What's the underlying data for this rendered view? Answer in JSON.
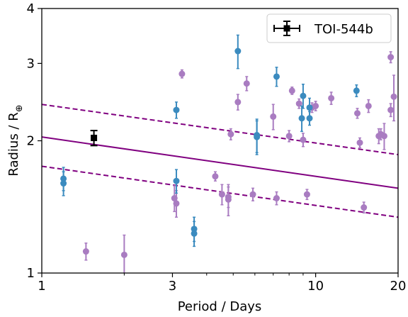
{
  "chart_data": {
    "type": "scatter",
    "xlabel": "Period / Days",
    "ylabel": "Radius / R",
    "ylabel_symbol": "⊕",
    "xscale": "log",
    "yscale": "log",
    "xlim": [
      1,
      20
    ],
    "ylim": [
      1,
      4
    ],
    "xticks": [
      {
        "value": 1,
        "label": "1"
      },
      {
        "value": 3,
        "label": "3"
      },
      {
        "value": 10,
        "label": "10"
      },
      {
        "value": 20,
        "label": "20"
      }
    ],
    "yticks": [
      {
        "value": 1,
        "label": "1"
      },
      {
        "value": 2,
        "label": "2"
      },
      {
        "value": 3,
        "label": "3"
      },
      {
        "value": 4,
        "label": "4"
      }
    ],
    "legend": {
      "position": "top-right",
      "entries": [
        "TOI-544b"
      ]
    },
    "colors": {
      "blue": "#3b8bbf",
      "purple": "#a97cc1",
      "line": "#800080",
      "target": "#000000"
    },
    "lines": [
      {
        "style": "solid",
        "x": [
          1,
          20
        ],
        "y": [
          2.04,
          1.56
        ]
      },
      {
        "style": "dashed",
        "x": [
          1,
          20
        ],
        "y": [
          2.42,
          1.86
        ]
      },
      {
        "style": "dashed",
        "x": [
          1,
          20
        ],
        "y": [
          1.75,
          1.34
        ]
      }
    ],
    "target": {
      "name": "TOI-544b",
      "x": 1.55,
      "y": 2.03,
      "yerr": [
        0.08,
        0.08
      ],
      "xerr": [
        0.03,
        0.03
      ]
    },
    "blue_points": [
      {
        "x": 1.2,
        "y": 1.64,
        "yerr": [
          0.1,
          0.1
        ]
      },
      {
        "x": 1.2,
        "y": 1.6,
        "yerr": [
          0.1,
          0.1
        ]
      },
      {
        "x": 3.1,
        "y": 2.35,
        "yerr": [
          0.1,
          0.1
        ]
      },
      {
        "x": 3.1,
        "y": 1.62,
        "yerr": [
          0.1,
          0.1
        ]
      },
      {
        "x": 3.6,
        "y": 1.26,
        "yerr": [
          0.08,
          0.08
        ]
      },
      {
        "x": 3.6,
        "y": 1.23,
        "yerr": [
          0.08,
          0.08
        ]
      },
      {
        "x": 5.2,
        "y": 3.2,
        "yerr": [
          0.28,
          0.28
        ]
      },
      {
        "x": 6.1,
        "y": 2.06,
        "yerr": [
          0.18,
          0.18
        ]
      },
      {
        "x": 6.1,
        "y": 2.04,
        "yerr": [
          0.18,
          0.18
        ]
      },
      {
        "x": 7.2,
        "y": 2.8,
        "yerr": [
          0.14,
          0.14
        ]
      },
      {
        "x": 9.0,
        "y": 2.53,
        "yerr": [
          0.16,
          0.16
        ]
      },
      {
        "x": 8.9,
        "y": 2.25,
        "yerr": [
          0.15,
          0.15
        ]
      },
      {
        "x": 9.5,
        "y": 2.38,
        "yerr": [
          0.12,
          0.12
        ]
      },
      {
        "x": 9.5,
        "y": 2.25,
        "yerr": [
          0.08,
          0.08
        ]
      },
      {
        "x": 14.1,
        "y": 2.6,
        "yerr": [
          0.08,
          0.08
        ]
      }
    ],
    "purple_points": [
      {
        "x": 1.45,
        "y": 1.12,
        "yerr": [
          0.05,
          0.05
        ]
      },
      {
        "x": 2.0,
        "y": 1.1,
        "yerr": [
          0.12,
          0.12
        ]
      },
      {
        "x": 3.05,
        "y": 1.48,
        "yerr": [
          0.1,
          0.1
        ]
      },
      {
        "x": 3.1,
        "y": 1.44,
        "yerr": [
          0.1,
          0.1
        ]
      },
      {
        "x": 3.25,
        "y": 2.84,
        "yerr": [
          0.06,
          0.06
        ]
      },
      {
        "x": 4.3,
        "y": 1.66,
        "yerr": [
          0.04,
          0.04
        ]
      },
      {
        "x": 4.55,
        "y": 1.51,
        "yerr": [
          0.08,
          0.08
        ]
      },
      {
        "x": 4.8,
        "y": 1.49,
        "yerr": [
          0.08,
          0.08
        ]
      },
      {
        "x": 4.8,
        "y": 1.47,
        "yerr": [
          0.12,
          0.12
        ]
      },
      {
        "x": 4.9,
        "y": 2.07,
        "yerr": [
          0.06,
          0.06
        ]
      },
      {
        "x": 5.2,
        "y": 2.45,
        "yerr": [
          0.1,
          0.1
        ]
      },
      {
        "x": 5.6,
        "y": 2.7,
        "yerr": [
          0.1,
          0.1
        ]
      },
      {
        "x": 5.9,
        "y": 1.51,
        "yerr": [
          0.05,
          0.05
        ]
      },
      {
        "x": 7.0,
        "y": 2.27,
        "yerr": [
          0.15,
          0.15
        ]
      },
      {
        "x": 7.2,
        "y": 1.48,
        "yerr": [
          0.05,
          0.05
        ]
      },
      {
        "x": 8.0,
        "y": 2.05,
        "yerr": [
          0.06,
          0.06
        ]
      },
      {
        "x": 8.2,
        "y": 2.6,
        "yerr": [
          0.05,
          0.05
        ]
      },
      {
        "x": 8.7,
        "y": 2.43,
        "yerr": [
          0.06,
          0.06
        ]
      },
      {
        "x": 9.0,
        "y": 2.01,
        "yerr": [
          0.07,
          0.07
        ]
      },
      {
        "x": 9.3,
        "y": 1.51,
        "yerr": [
          0.04,
          0.04
        ]
      },
      {
        "x": 9.7,
        "y": 2.38,
        "yerr": [
          0.06,
          0.06
        ]
      },
      {
        "x": 10.0,
        "y": 2.4,
        "yerr": [
          0.06,
          0.06
        ]
      },
      {
        "x": 11.4,
        "y": 2.5,
        "yerr": [
          0.08,
          0.08
        ]
      },
      {
        "x": 14.2,
        "y": 2.31,
        "yerr": [
          0.06,
          0.06
        ]
      },
      {
        "x": 14.5,
        "y": 1.98,
        "yerr": [
          0.05,
          0.05
        ]
      },
      {
        "x": 15.0,
        "y": 1.41,
        "yerr": [
          0.04,
          0.04
        ]
      },
      {
        "x": 15.6,
        "y": 2.4,
        "yerr": [
          0.08,
          0.08
        ]
      },
      {
        "x": 17.0,
        "y": 2.05,
        "yerr": [
          0.08,
          0.08
        ]
      },
      {
        "x": 17.3,
        "y": 2.07,
        "yerr": [
          0.06,
          0.06
        ]
      },
      {
        "x": 17.8,
        "y": 2.05,
        "yerr": [
          0.14,
          0.14
        ]
      },
      {
        "x": 18.8,
        "y": 2.35,
        "yerr": [
          0.08,
          0.08
        ]
      },
      {
        "x": 18.8,
        "y": 3.1,
        "yerr": [
          0.09,
          0.09
        ]
      },
      {
        "x": 19.3,
        "y": 2.52,
        "yerr": [
          0.3,
          0.3
        ]
      }
    ]
  }
}
